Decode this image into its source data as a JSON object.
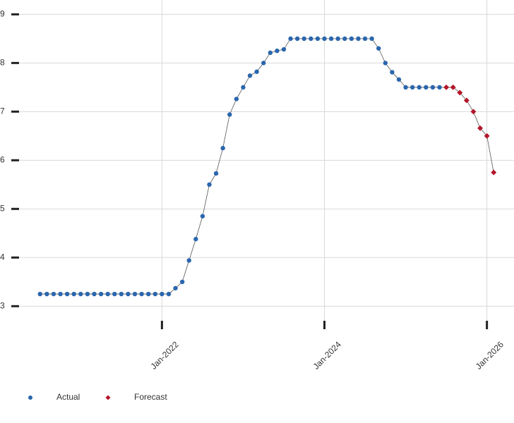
{
  "chart_data": {
    "type": "line",
    "x": [
      "2020-07",
      "2020-08",
      "2020-09",
      "2020-10",
      "2020-11",
      "2020-12",
      "2021-01",
      "2021-02",
      "2021-03",
      "2021-04",
      "2021-05",
      "2021-06",
      "2021-07",
      "2021-08",
      "2021-09",
      "2021-10",
      "2021-11",
      "2021-12",
      "2022-01",
      "2022-02",
      "2022-03",
      "2022-04",
      "2022-05",
      "2022-06",
      "2022-07",
      "2022-08",
      "2022-09",
      "2022-10",
      "2022-11",
      "2022-12",
      "2023-01",
      "2023-02",
      "2023-03",
      "2023-04",
      "2023-05",
      "2023-06",
      "2023-07",
      "2023-08",
      "2023-09",
      "2023-10",
      "2023-11",
      "2023-12",
      "2024-01",
      "2024-02",
      "2024-03",
      "2024-04",
      "2024-05",
      "2024-06",
      "2024-07",
      "2024-08",
      "2024-09",
      "2024-10",
      "2024-11",
      "2024-12",
      "2025-01",
      "2025-02",
      "2025-03",
      "2025-04",
      "2025-05",
      "2025-06",
      "2025-07",
      "2025-08",
      "2025-09",
      "2025-10",
      "2025-11",
      "2025-12",
      "2026-01",
      "2026-02"
    ],
    "series": [
      {
        "name": "Actual",
        "color": "#2a66ad",
        "marker": "circle",
        "values": [
          3.25,
          3.25,
          3.25,
          3.25,
          3.25,
          3.25,
          3.25,
          3.25,
          3.25,
          3.25,
          3.25,
          3.25,
          3.25,
          3.25,
          3.25,
          3.25,
          3.25,
          3.25,
          3.25,
          3.25,
          3.37,
          3.5,
          3.94,
          4.38,
          4.85,
          5.5,
          5.73,
          6.25,
          6.94,
          7.26,
          7.5,
          7.74,
          7.82,
          8.0,
          8.21,
          8.25,
          8.28,
          8.5,
          8.5,
          8.5,
          8.5,
          8.5,
          8.5,
          8.5,
          8.5,
          8.5,
          8.5,
          8.5,
          8.5,
          8.5,
          8.3,
          8.0,
          7.81,
          7.66,
          7.5,
          7.5,
          7.5,
          7.5,
          7.5,
          7.5,
          null,
          null,
          null,
          null,
          null,
          null,
          null,
          null
        ]
      },
      {
        "name": "Forecast",
        "color": "#b3162b",
        "marker": "diamond",
        "values": [
          null,
          null,
          null,
          null,
          null,
          null,
          null,
          null,
          null,
          null,
          null,
          null,
          null,
          null,
          null,
          null,
          null,
          null,
          null,
          null,
          null,
          null,
          null,
          null,
          null,
          null,
          null,
          null,
          null,
          null,
          null,
          null,
          null,
          null,
          null,
          null,
          null,
          null,
          null,
          null,
          null,
          null,
          null,
          null,
          null,
          null,
          null,
          null,
          null,
          null,
          null,
          null,
          null,
          null,
          null,
          null,
          null,
          null,
          null,
          null,
          7.5,
          7.5,
          7.39,
          7.23,
          7.0,
          6.66,
          6.5,
          5.75
        ]
      }
    ],
    "xlim": [
      "2020-04",
      "2026-05"
    ],
    "xticks": [
      {
        "value": "2022-01",
        "label": "Jan-2022"
      },
      {
        "value": "2024-01",
        "label": "Jan-2024"
      },
      {
        "value": "2026-01",
        "label": "Jan-2026"
      }
    ],
    "ylim": [
      2.7,
      9.15
    ],
    "yticks": [
      3,
      4,
      5,
      6,
      7,
      8,
      9
    ],
    "grid": true,
    "line_color": "#555555",
    "legend": "bottom-left"
  }
}
